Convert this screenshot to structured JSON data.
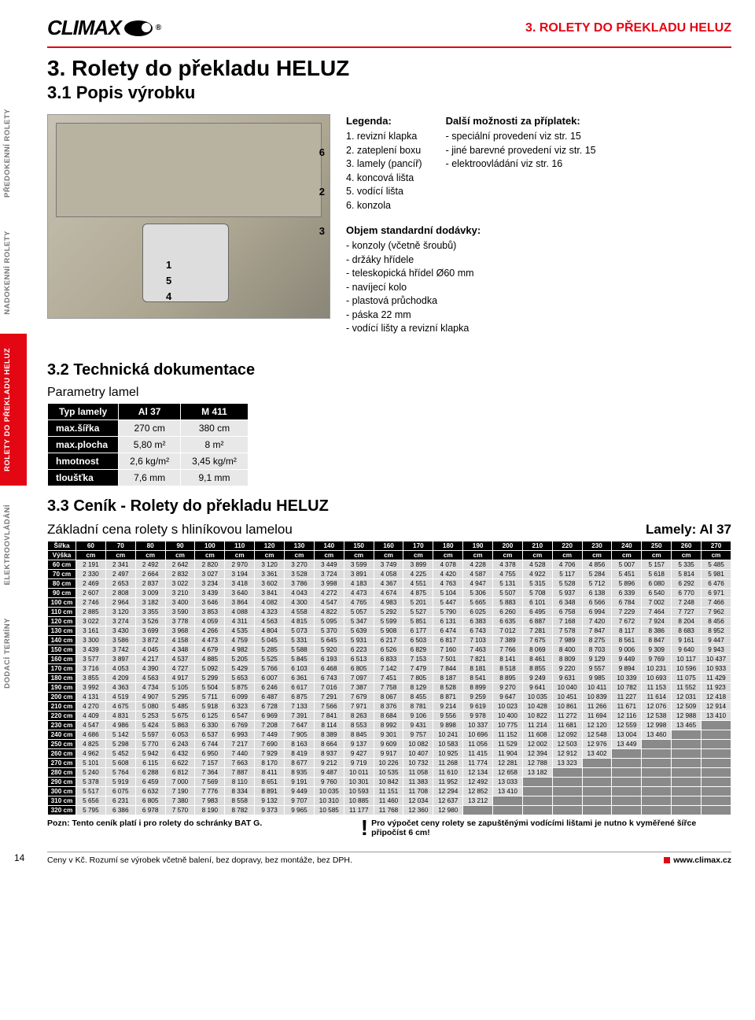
{
  "brand": "CLIMAX",
  "header_title": "3. ROLETY DO PŘEKLADU HELUZ",
  "main_title": "3.  Rolety do překladu HELUZ",
  "subtitle": "3.1  Popis výrobku",
  "callouts": [
    "1",
    "2",
    "3",
    "4",
    "5",
    "6"
  ],
  "legend": {
    "title": "Legenda:",
    "items": [
      "1. revizní klapka",
      "2. zateplení boxu",
      "3. lamely (pancíř)",
      "4. koncová lišta",
      "5. vodící lišta",
      "6. konzola"
    ]
  },
  "options": {
    "title": "Další možnosti za příplatek:",
    "items": [
      "- speciální provedení viz str. 15",
      "- jiné barevné provedení viz str. 15",
      "- elektroovládání viz str. 16"
    ]
  },
  "delivery": {
    "title": "Objem standardní dodávky:",
    "items": [
      "- konzoly (včetně šroubů)",
      "- držáky hřídele",
      "- teleskopická hřídel Ø60 mm",
      "- navíjecí kolo",
      "- plastová průchodka",
      "- páska 22 mm",
      "- vodící lišty a revizní klapka"
    ]
  },
  "side_tabs": [
    {
      "label": "PŘEDOKENNÍ\nROLETY",
      "active": false
    },
    {
      "label": "NADOKENNÍ\nROLETY",
      "active": false
    },
    {
      "label": "ROLETY\nDO PŘEKLADU HELUZ",
      "active": true
    },
    {
      "label": "ELEKTROOVLÁDÁNÍ",
      "active": false
    },
    {
      "label": "DODACÍ TERMÍNY",
      "active": false
    }
  ],
  "tech_title": "3.2  Technická dokumentace",
  "param_title": "Parametry lamel",
  "params": {
    "headers": [
      "Typ lamely",
      "Al 37",
      "M 411"
    ],
    "rows": [
      [
        "max.šířka",
        "270 cm",
        "380 cm"
      ],
      [
        "max.plocha",
        "5,80 m²",
        "8 m²"
      ],
      [
        "hmotnost",
        "2,6 kg/m²",
        "3,45 kg/m²"
      ],
      [
        "tloušťka",
        "7,6 mm",
        "9,1 mm"
      ]
    ]
  },
  "price_title": "3.3  Ceník - Rolety do překladu HELUZ",
  "price_subtitle": "Základní cena rolety s hliníkovou lamelou",
  "lamely_label": "Lamely: Al 37",
  "price_table": {
    "header1_label": "Šířka",
    "header2_label": "Výška",
    "widths": [
      "60",
      "70",
      "80",
      "90",
      "100",
      "110",
      "120",
      "130",
      "140",
      "150",
      "160",
      "170",
      "180",
      "190",
      "200",
      "210",
      "220",
      "230",
      "240",
      "250",
      "260",
      "270"
    ],
    "unit": "cm",
    "rows": [
      {
        "h": "60 cm",
        "v": [
          "2 191",
          "2 341",
          "2 492",
          "2 642",
          "2 820",
          "2 970",
          "3 120",
          "3 270",
          "3 449",
          "3 599",
          "3 749",
          "3 899",
          "4 078",
          "4 228",
          "4 378",
          "4 528",
          "4 706",
          "4 856",
          "5 007",
          "5 157",
          "5 335",
          "5 485"
        ]
      },
      {
        "h": "70 cm",
        "v": [
          "2 330",
          "2 497",
          "2 664",
          "2 832",
          "3 027",
          "3 194",
          "3 361",
          "3 528",
          "3 724",
          "3 891",
          "4 058",
          "4 225",
          "4 420",
          "4 587",
          "4 755",
          "4 922",
          "5 117",
          "5 284",
          "5 451",
          "5 618",
          "5 814",
          "5 981"
        ]
      },
      {
        "h": "80 cm",
        "v": [
          "2 469",
          "2 653",
          "2 837",
          "3 022",
          "3 234",
          "3 418",
          "3 602",
          "3 786",
          "3 998",
          "4 183",
          "4 367",
          "4 551",
          "4 763",
          "4 947",
          "5 131",
          "5 315",
          "5 528",
          "5 712",
          "5 896",
          "6 080",
          "6 292",
          "6 476"
        ]
      },
      {
        "h": "90 cm",
        "v": [
          "2 607",
          "2 808",
          "3 009",
          "3 210",
          "3 439",
          "3 640",
          "3 841",
          "4 043",
          "4 272",
          "4 473",
          "4 674",
          "4 875",
          "5 104",
          "5 306",
          "5 507",
          "5 708",
          "5 937",
          "6 138",
          "6 339",
          "6 540",
          "6 770",
          "6 971"
        ]
      },
      {
        "h": "100 cm",
        "v": [
          "2 746",
          "2 964",
          "3 182",
          "3 400",
          "3 646",
          "3 864",
          "4 082",
          "4 300",
          "4 547",
          "4 765",
          "4 983",
          "5 201",
          "5 447",
          "5 665",
          "5 883",
          "6 101",
          "6 348",
          "6 566",
          "6 784",
          "7 002",
          "7 248",
          "7 466"
        ]
      },
      {
        "h": "110 cm",
        "v": [
          "2 885",
          "3 120",
          "3 355",
          "3 590",
          "3 853",
          "4 088",
          "4 323",
          "4 558",
          "4 822",
          "5 057",
          "5 292",
          "5 527",
          "5 790",
          "6 025",
          "6 260",
          "6 495",
          "6 758",
          "6 994",
          "7 229",
          "7 464",
          "7 727",
          "7 962"
        ]
      },
      {
        "h": "120 cm",
        "v": [
          "3 022",
          "3 274",
          "3 526",
          "3 778",
          "4 059",
          "4 311",
          "4 563",
          "4 815",
          "5 095",
          "5 347",
          "5 599",
          "5 851",
          "6 131",
          "6 383",
          "6 635",
          "6 887",
          "7 168",
          "7 420",
          "7 672",
          "7 924",
          "8 204",
          "8 456"
        ]
      },
      {
        "h": "130 cm",
        "v": [
          "3 161",
          "3 430",
          "3 699",
          "3 968",
          "4 266",
          "4 535",
          "4 804",
          "5 073",
          "5 370",
          "5 639",
          "5 908",
          "6 177",
          "6 474",
          "6 743",
          "7 012",
          "7 281",
          "7 578",
          "7 847",
          "8 117",
          "8 386",
          "8 683",
          "8 952"
        ]
      },
      {
        "h": "140 cm",
        "v": [
          "3 300",
          "3 586",
          "3 872",
          "4 158",
          "4 473",
          "4 759",
          "5 045",
          "5 331",
          "5 645",
          "5 931",
          "6 217",
          "6 503",
          "6 817",
          "7 103",
          "7 389",
          "7 675",
          "7 989",
          "8 275",
          "8 561",
          "8 847",
          "9 161",
          "9 447"
        ]
      },
      {
        "h": "150 cm",
        "v": [
          "3 439",
          "3 742",
          "4 045",
          "4 348",
          "4 679",
          "4 982",
          "5 285",
          "5 588",
          "5 920",
          "6 223",
          "6 526",
          "6 829",
          "7 160",
          "7 463",
          "7 766",
          "8 069",
          "8 400",
          "8 703",
          "9 006",
          "9 309",
          "9 640",
          "9 943"
        ]
      },
      {
        "h": "160 cm",
        "v": [
          "3 577",
          "3 897",
          "4 217",
          "4 537",
          "4 885",
          "5 205",
          "5 525",
          "5 845",
          "6 193",
          "6 513",
          "6 833",
          "7 153",
          "7 501",
          "7 821",
          "8 141",
          "8 461",
          "8 809",
          "9 129",
          "9 449",
          "9 769",
          "10 117",
          "10 437"
        ]
      },
      {
        "h": "170 cm",
        "v": [
          "3 716",
          "4 053",
          "4 390",
          "4 727",
          "5 092",
          "5 429",
          "5 766",
          "6 103",
          "6 468",
          "6 805",
          "7 142",
          "7 479",
          "7 844",
          "8 181",
          "8 518",
          "8 855",
          "9 220",
          "9 557",
          "9 894",
          "10 231",
          "10 596",
          "10 933"
        ]
      },
      {
        "h": "180 cm",
        "v": [
          "3 855",
          "4 209",
          "4 563",
          "4 917",
          "5 299",
          "5 653",
          "6 007",
          "6 361",
          "6 743",
          "7 097",
          "7 451",
          "7 805",
          "8 187",
          "8 541",
          "8 895",
          "9 249",
          "9 631",
          "9 985",
          "10 339",
          "10 693",
          "11 075",
          "11 429"
        ]
      },
      {
        "h": "190 cm",
        "v": [
          "3 992",
          "4 363",
          "4 734",
          "5 105",
          "5 504",
          "5 875",
          "6 246",
          "6 617",
          "7 016",
          "7 387",
          "7 758",
          "8 129",
          "8 528",
          "8 899",
          "9 270",
          "9 641",
          "10 040",
          "10 411",
          "10 782",
          "11 153",
          "11 552",
          "11 923"
        ]
      },
      {
        "h": "200 cm",
        "v": [
          "4 131",
          "4 519",
          "4 907",
          "5 295",
          "5 711",
          "6 099",
          "6 487",
          "6 875",
          "7 291",
          "7 679",
          "8 067",
          "8 455",
          "8 871",
          "9 259",
          "9 647",
          "10 035",
          "10 451",
          "10 839",
          "11 227",
          "11 614",
          "12 031",
          "12 418"
        ]
      },
      {
        "h": "210 cm",
        "v": [
          "4 270",
          "4 675",
          "5 080",
          "5 485",
          "5 918",
          "6 323",
          "6 728",
          "7 133",
          "7 566",
          "7 971",
          "8 376",
          "8 781",
          "9 214",
          "9 619",
          "10 023",
          "10 428",
          "10 861",
          "11 266",
          "11 671",
          "12 076",
          "12 509",
          "12 914"
        ]
      },
      {
        "h": "220 cm",
        "v": [
          "4 409",
          "4 831",
          "5 253",
          "5 675",
          "6 125",
          "6 547",
          "6 969",
          "7 391",
          "7 841",
          "8 263",
          "8 684",
          "9 106",
          "9 556",
          "9 978",
          "10 400",
          "10 822",
          "11 272",
          "11 694",
          "12 116",
          "12 538",
          "12 988",
          "13 410"
        ]
      },
      {
        "h": "230 cm",
        "v": [
          "4 547",
          "4 986",
          "5 424",
          "5 863",
          "6 330",
          "6 769",
          "7 208",
          "7 647",
          "8 114",
          "8 553",
          "8 992",
          "9 431",
          "9 898",
          "10 337",
          "10 775",
          "11 214",
          "11 681",
          "12 120",
          "12 559",
          "12 998",
          "13 465",
          ""
        ]
      },
      {
        "h": "240 cm",
        "v": [
          "4 686",
          "5 142",
          "5 597",
          "6 053",
          "6 537",
          "6 993",
          "7 449",
          "7 905",
          "8 389",
          "8 845",
          "9 301",
          "9 757",
          "10 241",
          "10 696",
          "11 152",
          "11 608",
          "12 092",
          "12 548",
          "13 004",
          "13 460",
          "",
          ""
        ]
      },
      {
        "h": "250 cm",
        "v": [
          "4 825",
          "5 298",
          "5 770",
          "6 243",
          "6 744",
          "7 217",
          "7 690",
          "8 163",
          "8 664",
          "9 137",
          "9 609",
          "10 082",
          "10 583",
          "11 056",
          "11 529",
          "12 002",
          "12 503",
          "12 976",
          "13 449",
          "",
          "",
          ""
        ]
      },
      {
        "h": "260 cm",
        "v": [
          "4 962",
          "5 452",
          "5 942",
          "6 432",
          "6 950",
          "7 440",
          "7 929",
          "8 419",
          "8 937",
          "9 427",
          "9 917",
          "10 407",
          "10 925",
          "11 415",
          "11 904",
          "12 394",
          "12 912",
          "13 402",
          "",
          "",
          "",
          ""
        ]
      },
      {
        "h": "270 cm",
        "v": [
          "5 101",
          "5 608",
          "6 115",
          "6 622",
          "7 157",
          "7 663",
          "8 170",
          "8 677",
          "9 212",
          "9 719",
          "10 226",
          "10 732",
          "11 268",
          "11 774",
          "12 281",
          "12 788",
          "13 323",
          "",
          "",
          "",
          "",
          ""
        ]
      },
      {
        "h": "280 cm",
        "v": [
          "5 240",
          "5 764",
          "6 288",
          "6 812",
          "7 364",
          "7 887",
          "8 411",
          "8 935",
          "9 487",
          "10 011",
          "10 535",
          "11 058",
          "11 610",
          "12 134",
          "12 658",
          "13 182",
          "",
          "",
          "",
          "",
          "",
          ""
        ]
      },
      {
        "h": "290 cm",
        "v": [
          "5 378",
          "5 919",
          "6 459",
          "7 000",
          "7 569",
          "8 110",
          "8 651",
          "9 191",
          "9 760",
          "10 301",
          "10 842",
          "11 383",
          "11 952",
          "12 492",
          "13 033",
          "",
          "",
          "",
          "",
          "",
          "",
          ""
        ]
      },
      {
        "h": "300 cm",
        "v": [
          "5 517",
          "6 075",
          "6 632",
          "7 190",
          "7 776",
          "8 334",
          "8 891",
          "9 449",
          "10 035",
          "10 593",
          "11 151",
          "11 708",
          "12 294",
          "12 852",
          "13 410",
          "",
          "",
          "",
          "",
          "",
          "",
          ""
        ]
      },
      {
        "h": "310 cm",
        "v": [
          "5 656",
          "6 231",
          "6 805",
          "7 380",
          "7 983",
          "8 558",
          "9 132",
          "9 707",
          "10 310",
          "10 885",
          "11 460",
          "12 034",
          "12 637",
          "13 212",
          "",
          "",
          "",
          "",
          "",
          "",
          "",
          ""
        ]
      },
      {
        "h": "320 cm",
        "v": [
          "5 795",
          "6 386",
          "6 978",
          "7 570",
          "8 190",
          "8 782",
          "9 373",
          "9 965",
          "10 585",
          "11 177",
          "11 768",
          "12 360",
          "12 980",
          "",
          "",
          "",
          "",
          "",
          "",
          "",
          "",
          ""
        ]
      }
    ]
  },
  "note_left": "Pozn: Tento ceník platí i pro rolety do schránky BAT G.",
  "note_right": "Pro výpočet ceny rolety se zapuštěnými vodícími lištami je nutno k vyměřené šířce připočíst 6 cm!",
  "page_number": "14",
  "footer_left": "Ceny v Kč. Rozumí se výrobek včetně balení, bez dopravy, bez montáže, bez DPH.",
  "footer_right": "www.climax.cz"
}
